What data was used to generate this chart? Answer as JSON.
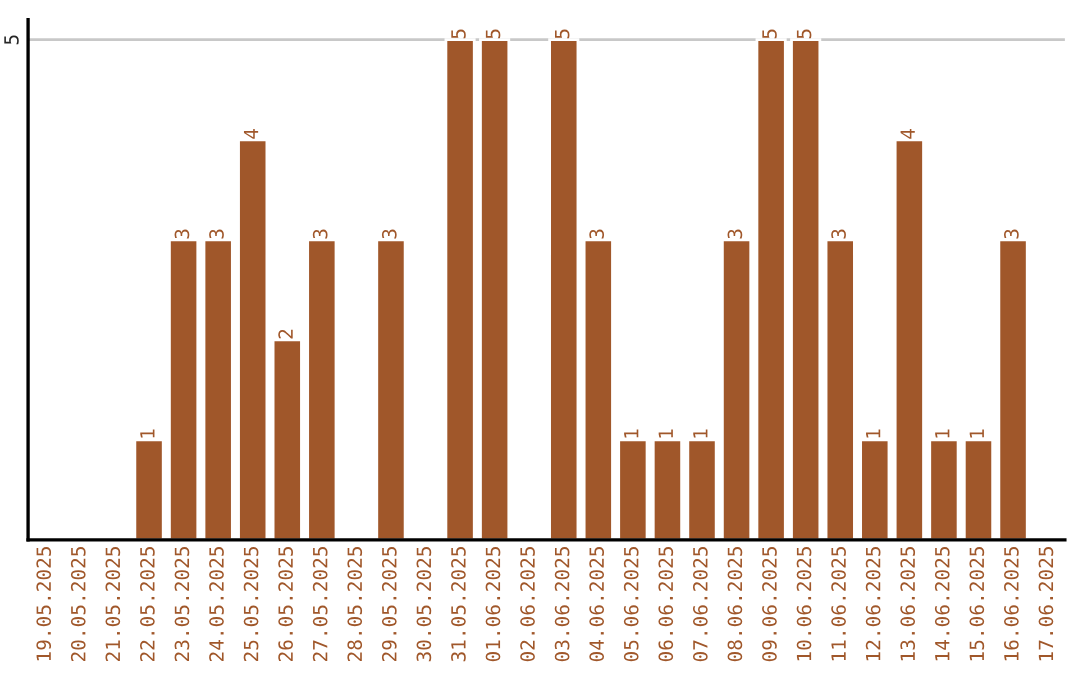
{
  "chart_data": {
    "type": "bar",
    "categories": [
      "19.05.2025",
      "20.05.2025",
      "21.05.2025",
      "22.05.2025",
      "23.05.2025",
      "24.05.2025",
      "25.05.2025",
      "26.05.2025",
      "27.05.2025",
      "28.05.2025",
      "29.05.2025",
      "30.05.2025",
      "31.05.2025",
      "01.06.2025",
      "02.06.2025",
      "03.06.2025",
      "04.06.2025",
      "05.06.2025",
      "06.06.2025",
      "07.06.2025",
      "08.06.2025",
      "09.06.2025",
      "10.06.2025",
      "11.06.2025",
      "12.06.2025",
      "13.06.2025",
      "14.06.2025",
      "15.06.2025",
      "16.06.2025",
      "17.06.2025"
    ],
    "values": [
      null,
      null,
      null,
      1,
      3,
      3,
      4,
      2,
      3,
      null,
      3,
      null,
      5,
      5,
      null,
      5,
      3,
      1,
      1,
      1,
      3,
      5,
      5,
      3,
      1,
      4,
      1,
      1,
      3,
      null
    ],
    "value_labels": [
      null,
      null,
      null,
      "1",
      "3",
      "3",
      "4",
      "2",
      "3",
      null,
      "3",
      null,
      "5",
      "5",
      null,
      "5",
      "3",
      "1",
      "1",
      "1",
      "3",
      "5",
      "5",
      "3",
      "1",
      "4",
      "1",
      "1",
      "3",
      null
    ],
    "color": "#a0572a",
    "ylim": [
      0,
      5.2
    ],
    "yticks": [
      5
    ],
    "grid": "y"
  }
}
